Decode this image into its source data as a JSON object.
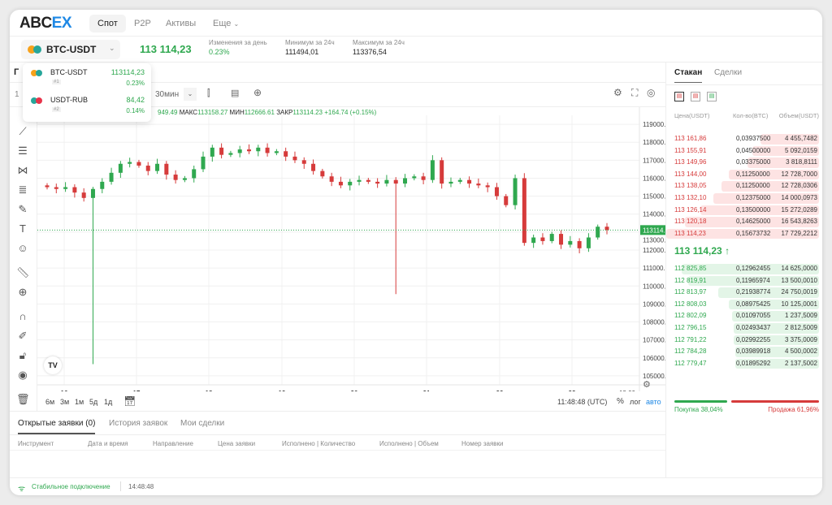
{
  "nav": {
    "logo_a": "ABC",
    "logo_b": "EX",
    "items": [
      "Спот",
      "P2P",
      "Активы",
      "Еще"
    ]
  },
  "ticker": {
    "pair": "BTC-USDT",
    "price": "113 114,23",
    "stats": [
      {
        "label": "Изменения за день",
        "value": "0.23%"
      },
      {
        "label": "Минимум за 24ч",
        "value": "111494,01"
      },
      {
        "label": "Максимум за 24ч",
        "value": "113376,54"
      }
    ]
  },
  "dropdown": [
    {
      "pair": "BTC-USDT",
      "rank": "#1",
      "price": "113114,23",
      "change": "0.23%"
    },
    {
      "pair": "USDT-RUB",
      "rank": "#2",
      "price": "84,42",
      "change": "0.14%"
    }
  ],
  "chart_header": {
    "partial_title": "Г",
    "interval_partial": "1",
    "interval": "30мин"
  },
  "ohlc": {
    "open_partial": "949.49",
    "high_label": "МАКС",
    "high": "113158.27",
    "low_label": "МИН",
    "low": "112666.61",
    "close_label": "ЗАКР",
    "close": "113114.23",
    "change": "+164.74 (+0.15%)"
  },
  "chart_data": {
    "type": "candlestick",
    "ylim": [
      104500,
      119500
    ],
    "yticks": [
      "119000.00",
      "118000.00",
      "117000.00",
      "116000.00",
      "115000.00",
      "114000.00",
      "113000.00",
      "112000.00",
      "111000.00",
      "110000.00",
      "109000.00",
      "108000.00",
      "107000.00",
      "106000.00",
      "105000.00"
    ],
    "xticks": [
      "16",
      "17",
      "18",
      "19",
      "20",
      "21",
      "22",
      "23",
      "18:00"
    ],
    "last_price": "113114.23",
    "closes": [
      115500,
      115400,
      115500,
      115200,
      114900,
      115400,
      115800,
      116300,
      116800,
      116900,
      116700,
      116400,
      116800,
      116200,
      115900,
      116000,
      116500,
      117200,
      117700,
      117300,
      117400,
      117600,
      117500,
      117700,
      117400,
      117500,
      117200,
      117000,
      116800,
      116400,
      116100,
      115800,
      115600,
      115800,
      115900,
      115800,
      115700,
      115900,
      115700,
      116000,
      116100,
      115900,
      117000,
      115700,
      115800,
      115900,
      115700,
      115600,
      115500,
      115000,
      114500,
      116000,
      112400,
      112700,
      112500,
      112900,
      112300,
      112500,
      112100,
      112700,
      113300,
      113114
    ],
    "long_wicks": [
      {
        "index": 5,
        "low": 105650
      },
      {
        "index": 38,
        "low": 109550
      }
    ]
  },
  "ranges": [
    "6м",
    "3м",
    "1м",
    "5д",
    "1д"
  ],
  "clock": "11:48:48 (UTC)",
  "scale": {
    "pct": "%",
    "log": "лог",
    "auto": "авто"
  },
  "orders": {
    "tabs": [
      "Открытые заявки (0)",
      "История заявок",
      "Мои сделки"
    ],
    "columns": [
      "Инструмент",
      "Дата и время",
      "Направление",
      "Цена заявки",
      "Исполнено | Количество",
      "Исполнено | Объем",
      "Номер заявки"
    ]
  },
  "status": {
    "text": "Стабильное подключение",
    "time": "14:48:48"
  },
  "book": {
    "tabs": [
      "Стакан",
      "Сделки"
    ],
    "columns": [
      "Цена(USDT)",
      "Кол-во(BTC)",
      "Объем(USDT)"
    ],
    "asks": [
      [
        "113 161,86",
        "0,03937500",
        "4 455,7482",
        0.6
      ],
      [
        "113 155,91",
        "0,04500000",
        "5 092,0159",
        0.55
      ],
      [
        "113 149,96",
        "0,03375000",
        "3 818,8111",
        0.52
      ],
      [
        "113 144,00",
        "0,11250000",
        "12 728,7000",
        0.4
      ],
      [
        "113 138,05",
        "0,11250000",
        "12 728,0306",
        0.35
      ],
      [
        "113 132,10",
        "0,12375000",
        "14 000,0973",
        0.3
      ],
      [
        "113 126,14",
        "0,13500000",
        "15 272,0289",
        0.22
      ],
      [
        "113 120,18",
        "0,14625000",
        "16 543,8263",
        0.12
      ],
      [
        "113 114,23",
        "0,15673732",
        "17 729,2212",
        0
      ]
    ],
    "mid": "113 114,23",
    "bids": [
      [
        "112 825,85",
        "0,12962455",
        "14 625,0000",
        0.1
      ],
      [
        "112 819,91",
        "0,11965974",
        "13 500,0010",
        0.14
      ],
      [
        "112 813,97",
        "0,21938774",
        "24 750,0019",
        0.33
      ],
      [
        "112 808,03",
        "0,08975425",
        "10 125,0001",
        0.4
      ],
      [
        "112 802,09",
        "0,01097055",
        "1 237,5009",
        0.42
      ],
      [
        "112 796,15",
        "0,02493437",
        "2 812,5009",
        0.43
      ],
      [
        "112 791,22",
        "0,02992255",
        "3 375,0009",
        0.43
      ],
      [
        "112 784,28",
        "0,03989918",
        "4 500,0002",
        0.44
      ],
      [
        "112 779,47",
        "0,01895292",
        "2 137,5002",
        0.44
      ]
    ],
    "buy": "Покупка 38,04%",
    "sell": "Продажа 61,96%",
    "buy_pct": 38.04
  },
  "colors": {
    "up": "#2fa84f",
    "down": "#d63b3b",
    "accent": "#1e88e5"
  }
}
